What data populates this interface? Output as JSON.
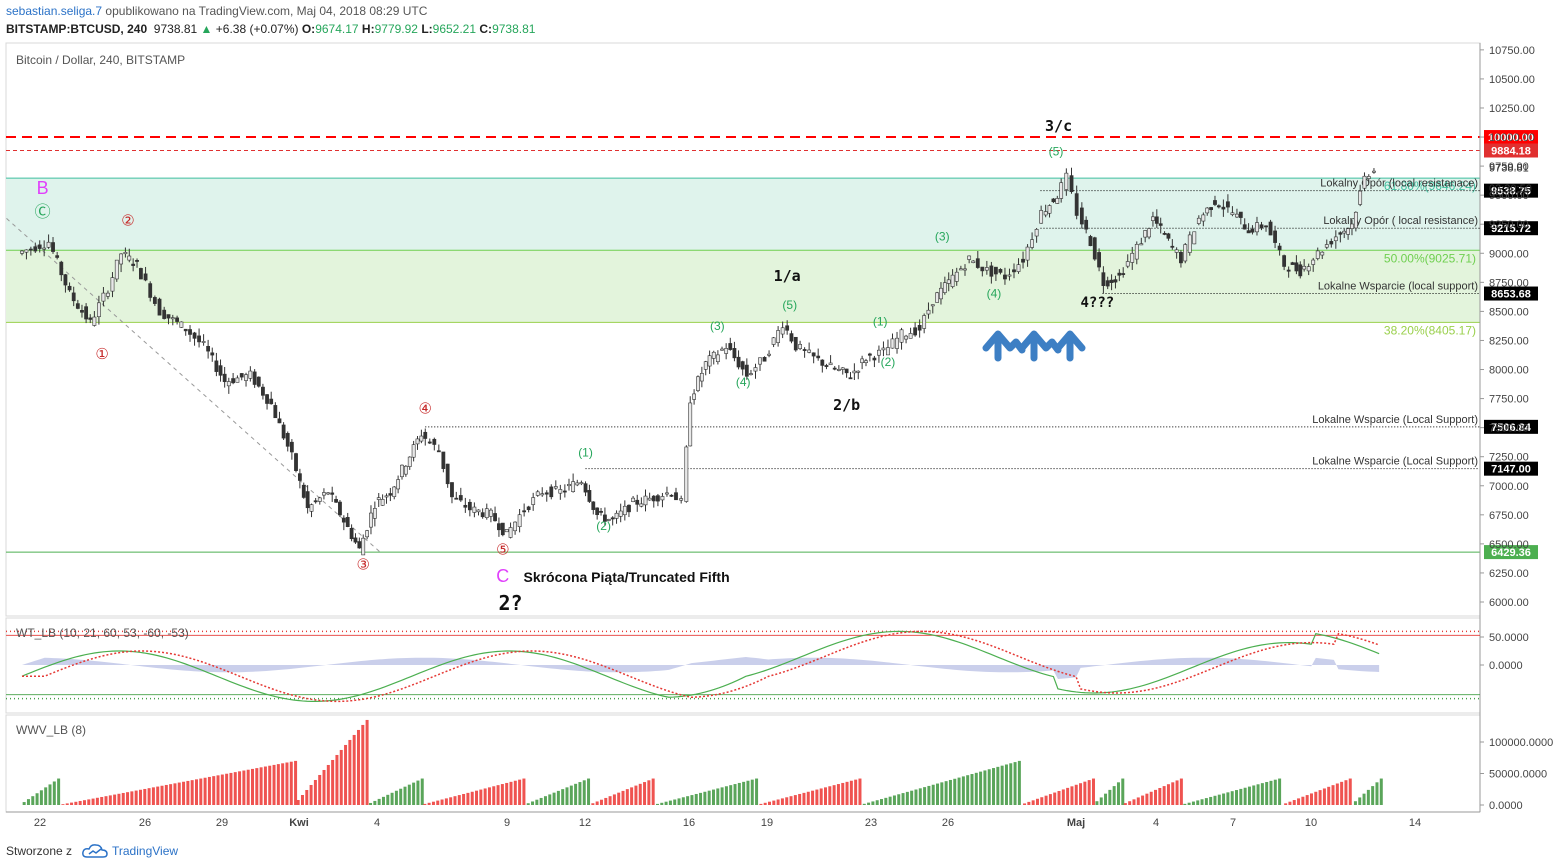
{
  "header": {
    "user": "sebastian.seliga.7",
    "published": "opublikowano na TradingView.com, Maj 04, 2018 08:29 UTC",
    "symbol": "BITSTAMP:BTCUSD, 240",
    "last": "9738.81",
    "change": "+6.38 (+0.07%)",
    "o_label": "O:",
    "o": "9674.17",
    "h_label": "H:",
    "h": "9779.92",
    "l_label": "L:",
    "l": "9652.21",
    "c_label": "C:",
    "c": "9738.81"
  },
  "footer": {
    "created": "Stworzone z",
    "brand": "TradingView"
  },
  "chart_data": [
    {
      "type": "candlestick",
      "title": "Bitcoin / Dollar, 240, BITSTAMP",
      "y_ticks": [
        "10750.00",
        "10500.00",
        "10250.00",
        "10000.00",
        "9750.00",
        "9500.00",
        "9250.00",
        "9000.00",
        "8750.00",
        "8500.00",
        "8250.00",
        "8000.00",
        "7750.00",
        "7500.00",
        "7250.00",
        "7000.00",
        "6750.00",
        "6500.00",
        "6250.00",
        "6000.00"
      ],
      "ylim": [
        5870,
        10850
      ],
      "x_ticks": [
        "22",
        "26",
        "29",
        "Kwi",
        "4",
        "9",
        "12",
        "16",
        "19",
        "23",
        "26",
        "Maj",
        "4",
        "7",
        "10",
        "14"
      ],
      "price_series": [
        {
          "d": 0,
          "p": 9000
        },
        {
          "d": 1.2,
          "p": 9100
        },
        {
          "d": 2.0,
          "p": 8650
        },
        {
          "d": 2.8,
          "p": 8400
        },
        {
          "d": 3.5,
          "p": 8700
        },
        {
          "d": 4.0,
          "p": 9000
        },
        {
          "d": 4.6,
          "p": 8900
        },
        {
          "d": 5.5,
          "p": 8500
        },
        {
          "d": 6.5,
          "p": 8350
        },
        {
          "d": 7.2,
          "p": 8200
        },
        {
          "d": 8.0,
          "p": 7900
        },
        {
          "d": 9.0,
          "p": 7950
        },
        {
          "d": 9.8,
          "p": 7700
        },
        {
          "d": 10.6,
          "p": 7250
        },
        {
          "d": 11.2,
          "p": 6800
        },
        {
          "d": 12.0,
          "p": 6950
        },
        {
          "d": 12.6,
          "p": 6700
        },
        {
          "d": 13.2,
          "p": 6450
        },
        {
          "d": 13.8,
          "p": 6850
        },
        {
          "d": 14.4,
          "p": 6950
        },
        {
          "d": 15.0,
          "p": 7200
        },
        {
          "d": 15.6,
          "p": 7450
        },
        {
          "d": 16.3,
          "p": 7300
        },
        {
          "d": 16.8,
          "p": 6900
        },
        {
          "d": 17.5,
          "p": 6800
        },
        {
          "d": 18.3,
          "p": 6750
        },
        {
          "d": 18.9,
          "p": 6580
        },
        {
          "d": 19.6,
          "p": 6800
        },
        {
          "d": 20.3,
          "p": 6950
        },
        {
          "d": 21.0,
          "p": 6950
        },
        {
          "d": 21.8,
          "p": 7050
        },
        {
          "d": 22.4,
          "p": 6750
        },
        {
          "d": 23.0,
          "p": 6700
        },
        {
          "d": 23.8,
          "p": 6850
        },
        {
          "d": 24.6,
          "p": 6900
        },
        {
          "d": 25.3,
          "p": 6950
        },
        {
          "d": 25.7,
          "p": 6850
        },
        {
          "d": 26.0,
          "p": 7750
        },
        {
          "d": 26.6,
          "p": 8050
        },
        {
          "d": 27.4,
          "p": 8200
        },
        {
          "d": 28.2,
          "p": 7950
        },
        {
          "d": 28.9,
          "p": 8100
        },
        {
          "d": 29.6,
          "p": 8400
        },
        {
          "d": 30.1,
          "p": 8200
        },
        {
          "d": 30.8,
          "p": 8100
        },
        {
          "d": 31.6,
          "p": 8000
        },
        {
          "d": 32.2,
          "p": 7950
        },
        {
          "d": 32.8,
          "p": 8100
        },
        {
          "d": 33.5,
          "p": 8150
        },
        {
          "d": 34.2,
          "p": 8300
        },
        {
          "d": 34.9,
          "p": 8350
        },
        {
          "d": 35.4,
          "p": 8600
        },
        {
          "d": 36.0,
          "p": 8750
        },
        {
          "d": 36.8,
          "p": 8950
        },
        {
          "d": 37.5,
          "p": 8850
        },
        {
          "d": 38.2,
          "p": 8800
        },
        {
          "d": 38.9,
          "p": 8950
        },
        {
          "d": 39.6,
          "p": 9350
        },
        {
          "d": 40.2,
          "p": 9500
        },
        {
          "d": 40.6,
          "p": 9650
        },
        {
          "d": 41.0,
          "p": 9350
        },
        {
          "d": 41.5,
          "p": 9100
        },
        {
          "d": 42.0,
          "p": 8750
        },
        {
          "d": 42.6,
          "p": 8800
        },
        {
          "d": 43.3,
          "p": 9050
        },
        {
          "d": 43.9,
          "p": 9300
        },
        {
          "d": 44.5,
          "p": 9100
        },
        {
          "d": 45.0,
          "p": 8950
        },
        {
          "d": 45.7,
          "p": 9300
        },
        {
          "d": 46.3,
          "p": 9450
        },
        {
          "d": 47.0,
          "p": 9350
        },
        {
          "d": 47.6,
          "p": 9200
        },
        {
          "d": 48.3,
          "p": 9250
        },
        {
          "d": 49.0,
          "p": 8900
        },
        {
          "d": 49.6,
          "p": 8850
        },
        {
          "d": 50.3,
          "p": 9000
        },
        {
          "d": 51.0,
          "p": 9150
        },
        {
          "d": 51.6,
          "p": 9250
        },
        {
          "d": 52.1,
          "p": 9650
        },
        {
          "d": 52.5,
          "p": 9740
        }
      ],
      "levels": [
        {
          "price": 10000,
          "label": "10000.00",
          "color": "#ff0000",
          "style": "dashed"
        },
        {
          "price": 9884.18,
          "label": "9884.18",
          "color": "#e03030",
          "style": "dashed"
        },
        {
          "price": 9538.75,
          "label": "9538.75",
          "note": "Lokalny Opór (local resistanace)",
          "color": "#000",
          "style": "dotted"
        },
        {
          "price": 9215.72,
          "label": "9215.72",
          "note": "Lokalny Opór ( local resistance)",
          "color": "#000",
          "style": "dotted"
        },
        {
          "price": 8653.68,
          "label": "8653.68",
          "note": "Lokalne Wsparcie (local support)",
          "color": "#000",
          "style": "dotted"
        },
        {
          "price": 7506.84,
          "label": "7506.84",
          "note": "Lokalne Wsparcie (Local Support)",
          "color": "#000",
          "style": "dotted"
        },
        {
          "price": 7147.0,
          "label": "7147.00",
          "note": "Lokalne Wsparcie (Local Support)",
          "color": "#000",
          "style": "dotted"
        },
        {
          "price": 6429.36,
          "label": "6429.36",
          "color": "#4caf50",
          "style": "solid"
        }
      ],
      "fib": [
        {
          "price": 9646.24,
          "label": "61.80%(9646.24)"
        },
        {
          "price": 9025.71,
          "label": "50.00%(9025.71)"
        },
        {
          "price": 8405.17,
          "label": "38.20%(8405.17)"
        }
      ],
      "price_label_current": "9738.81",
      "price_label_time": "03:30:50",
      "annotations": [
        {
          "text": "B",
          "d": 0.8,
          "p": 9510,
          "color": "#e040fb",
          "size": 18
        },
        {
          "text": "Ⓒ",
          "d": 0.8,
          "p": 9310,
          "color": "#26a65b",
          "size": 16
        },
        {
          "text": "①",
          "d": 3.1,
          "p": 8090,
          "color": "#c62828",
          "size": 15
        },
        {
          "text": "②",
          "d": 4.1,
          "p": 9240,
          "color": "#c62828",
          "size": 15
        },
        {
          "text": "③",
          "d": 13.2,
          "p": 6280,
          "color": "#c62828",
          "size": 15
        },
        {
          "text": "④",
          "d": 15.6,
          "p": 7620,
          "color": "#c62828",
          "size": 15
        },
        {
          "text": "⑤",
          "d": 18.6,
          "p": 6410,
          "color": "#c62828",
          "size": 15
        },
        {
          "text": "C",
          "d": 18.6,
          "p": 6170,
          "color": "#e040fb",
          "size": 18
        },
        {
          "text": "Skrócona Piąta/Truncated Fifth",
          "d": 19.4,
          "p": 6170,
          "color": "#111",
          "size": 14,
          "bold": true,
          "anchor": "start"
        },
        {
          "text": "2?",
          "d": 18.9,
          "p": 5930,
          "color": "#111",
          "size": 20,
          "bold": true
        },
        {
          "text": "(1)",
          "d": 21.8,
          "p": 7250,
          "color": "#26a65b",
          "size": 12
        },
        {
          "text": "(2)",
          "d": 22.5,
          "p": 6620,
          "color": "#26a65b",
          "size": 12
        },
        {
          "text": "(3)",
          "d": 26.9,
          "p": 8340,
          "color": "#26a65b",
          "size": 12
        },
        {
          "text": "(4)",
          "d": 27.9,
          "p": 7860,
          "color": "#26a65b",
          "size": 12
        },
        {
          "text": "(5)",
          "d": 29.7,
          "p": 8520,
          "color": "#26a65b",
          "size": 12
        },
        {
          "text": "1/a",
          "d": 29.6,
          "p": 8760,
          "color": "#111",
          "size": 15,
          "bold": true
        },
        {
          "text": "2/b",
          "d": 31.9,
          "p": 7650,
          "color": "#111",
          "size": 15,
          "bold": true
        },
        {
          "text": "(1)",
          "d": 33.2,
          "p": 8380,
          "color": "#26a65b",
          "size": 12
        },
        {
          "text": "(2)",
          "d": 33.5,
          "p": 8030,
          "color": "#26a65b",
          "size": 12
        },
        {
          "text": "(3)",
          "d": 35.6,
          "p": 9110,
          "color": "#26a65b",
          "size": 12
        },
        {
          "text": "(4)",
          "d": 37.6,
          "p": 8620,
          "color": "#26a65b",
          "size": 12
        },
        {
          "text": "(5)",
          "d": 40.0,
          "p": 9840,
          "color": "#26a65b",
          "size": 12
        },
        {
          "text": "3/c",
          "d": 40.1,
          "p": 10050,
          "color": "#111",
          "size": 15,
          "bold": true
        },
        {
          "text": "4???",
          "d": 41.6,
          "p": 8540,
          "color": "#111",
          "size": 14,
          "bold": true
        }
      ]
    },
    {
      "type": "line",
      "title": "WT_LB (10, 21, 60, 53, -60, -53)",
      "y_ticks": [
        "50.0000",
        "0.0000"
      ],
      "levels": [
        60,
        53,
        -53,
        -60
      ]
    },
    {
      "type": "bar",
      "title": "WWV_LB (8)",
      "y_ticks": [
        "100000.0000",
        "50000.0000",
        "0.0000"
      ]
    }
  ]
}
